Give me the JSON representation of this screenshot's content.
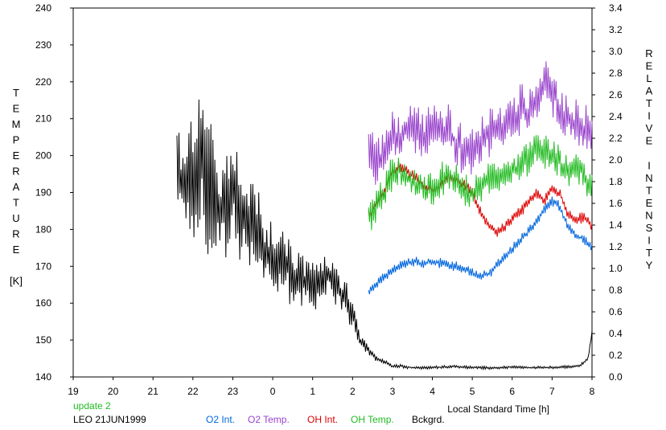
{
  "chart_data": {
    "type": "line",
    "title": "",
    "xlabel": "Local Standard Time [h]",
    "ylabel_left": [
      "T",
      "E",
      "M",
      "P",
      "E",
      "R",
      "A",
      "T",
      "U",
      "R",
      "E",
      "",
      "[K]"
    ],
    "ylabel_right": [
      "R",
      "E",
      "L",
      "A",
      "T",
      "I",
      "V",
      "E",
      "",
      "I",
      "N",
      "T",
      "E",
      "N",
      "S",
      "I",
      "T",
      "Y"
    ],
    "x_ticks": [
      "19",
      "20",
      "21",
      "22",
      "23",
      "0",
      "1",
      "2",
      "3",
      "4",
      "5",
      "6",
      "7",
      "8"
    ],
    "xlim": [
      19,
      32
    ],
    "y_left_ticks": [
      "140",
      "150",
      "160",
      "170",
      "180",
      "190",
      "200",
      "210",
      "220",
      "230",
      "240"
    ],
    "y_left_lim": [
      140,
      240
    ],
    "y_right_ticks": [
      "0.0",
      "0.2",
      "0.4",
      "0.6",
      "0.8",
      "1.0",
      "1.2",
      "1.4",
      "1.6",
      "1.8",
      "2.0",
      "2.2",
      "2.4",
      "2.6",
      "2.8",
      "3.0",
      "3.2",
      "3.4"
    ],
    "y_right_lim": [
      0,
      3.4
    ],
    "grid": false,
    "series": [
      {
        "name": "O2 Int.",
        "color": "#0066dd",
        "axis": "right",
        "x": [
          26.4,
          26.6,
          26.8,
          27.0,
          27.2,
          27.4,
          27.6,
          27.8,
          28.0,
          28.2,
          28.4,
          28.6,
          28.8,
          29.0,
          29.2,
          29.4,
          29.6,
          29.8,
          30.0,
          30.2,
          30.4,
          30.6,
          30.8,
          31.0,
          31.2,
          31.4,
          31.6,
          31.8,
          32.0
        ],
        "y": [
          0.78,
          0.85,
          0.92,
          0.98,
          1.03,
          1.05,
          1.06,
          1.04,
          1.06,
          1.05,
          1.03,
          1.02,
          0.99,
          0.96,
          0.92,
          0.95,
          1.02,
          1.1,
          1.18,
          1.26,
          1.34,
          1.42,
          1.55,
          1.62,
          1.57,
          1.38,
          1.3,
          1.27,
          1.2
        ],
        "noise": 0.035
      },
      {
        "name": "O2 Temp.",
        "color": "#9944cc",
        "axis": "left",
        "x": [
          26.4,
          26.6,
          26.8,
          27.0,
          27.2,
          27.4,
          27.6,
          27.8,
          28.0,
          28.2,
          28.4,
          28.6,
          28.8,
          29.0,
          29.2,
          29.4,
          29.6,
          29.8,
          30.0,
          30.2,
          30.4,
          30.6,
          30.8,
          31.0,
          31.2,
          31.4,
          31.6,
          31.8,
          32.0
        ],
        "y": [
          202,
          198,
          201,
          206,
          204,
          208,
          207,
          205,
          209,
          206,
          207,
          203,
          202,
          200,
          204,
          206,
          208,
          207,
          209,
          213,
          211,
          215,
          221,
          218,
          212,
          210,
          209,
          208,
          205
        ],
        "noise": 5
      },
      {
        "name": "OH Int.",
        "color": "#dd0000",
        "axis": "right",
        "x": [
          26.4,
          26.6,
          26.8,
          27.0,
          27.2,
          27.4,
          27.6,
          27.8,
          28.0,
          28.2,
          28.4,
          28.6,
          28.8,
          29.0,
          29.2,
          29.4,
          29.6,
          29.8,
          30.0,
          30.2,
          30.4,
          30.6,
          30.8,
          31.0,
          31.2,
          31.4,
          31.6,
          31.8,
          32.0
        ],
        "y": [
          1.5,
          1.6,
          1.72,
          1.9,
          1.95,
          1.88,
          1.84,
          1.76,
          1.72,
          1.76,
          1.84,
          1.82,
          1.78,
          1.7,
          1.52,
          1.4,
          1.33,
          1.38,
          1.45,
          1.52,
          1.6,
          1.7,
          1.62,
          1.74,
          1.68,
          1.5,
          1.45,
          1.48,
          1.38
        ],
        "noise": 0.04
      },
      {
        "name": "OH Temp.",
        "color": "#22bb22",
        "axis": "left",
        "x": [
          26.4,
          26.6,
          26.8,
          27.0,
          27.2,
          27.4,
          27.6,
          27.8,
          28.0,
          28.2,
          28.4,
          28.6,
          28.8,
          29.0,
          29.2,
          29.4,
          29.6,
          29.8,
          30.0,
          30.2,
          30.4,
          30.6,
          30.8,
          31.0,
          31.2,
          31.4,
          31.6,
          31.8,
          32.0
        ],
        "y": [
          184,
          186,
          190,
          195,
          196,
          194,
          192,
          191,
          190,
          193,
          195,
          193,
          191,
          190,
          191,
          194,
          193,
          195,
          196,
          197,
          199,
          202,
          201,
          200,
          198,
          196,
          197,
          195,
          190
        ],
        "noise": 3.5
      },
      {
        "name": "Bckgrd.",
        "color": "#000000",
        "axis": "left",
        "x": [
          21.6,
          21.8,
          22.0,
          22.2,
          22.4,
          22.6,
          22.8,
          23.0,
          23.2,
          23.4,
          23.6,
          23.8,
          24.0,
          24.2,
          24.4,
          24.6,
          24.8,
          25.0,
          25.2,
          25.4,
          25.6,
          25.8,
          26.0,
          26.2,
          26.4,
          26.6,
          26.8,
          27.0,
          27.2,
          27.5,
          28.0,
          28.5,
          29.0,
          29.5,
          30.0,
          30.5,
          31.0,
          31.5,
          31.7,
          31.9,
          32.0
        ],
        "y": [
          200,
          190,
          194,
          198,
          195,
          185,
          188,
          190,
          185,
          182,
          180,
          175,
          172,
          172,
          170,
          168,
          166,
          165,
          166,
          168,
          164,
          162,
          157,
          150,
          147,
          145,
          144,
          143,
          143,
          142.5,
          142.5,
          142.8,
          142.6,
          142.4,
          142.7,
          142.5,
          142.6,
          142.8,
          143,
          145,
          152
        ],
        "noise": [
          12,
          11,
          14,
          16,
          18,
          15,
          12,
          12,
          11,
          10,
          9,
          8,
          8,
          7,
          7,
          6,
          6,
          6,
          5,
          5,
          4,
          4,
          3,
          2,
          1.2,
          0.6,
          0.5,
          0.4,
          0.4,
          0.3,
          0.3,
          0.3,
          0.3,
          0.3,
          0.3,
          0.3,
          0.3,
          0.3,
          0.3,
          0.3,
          0.3
        ]
      }
    ]
  },
  "notes": {
    "update": "update 2",
    "station": "LEO 21JUN1999"
  },
  "colors": {
    "update_text": "#22bb22"
  }
}
